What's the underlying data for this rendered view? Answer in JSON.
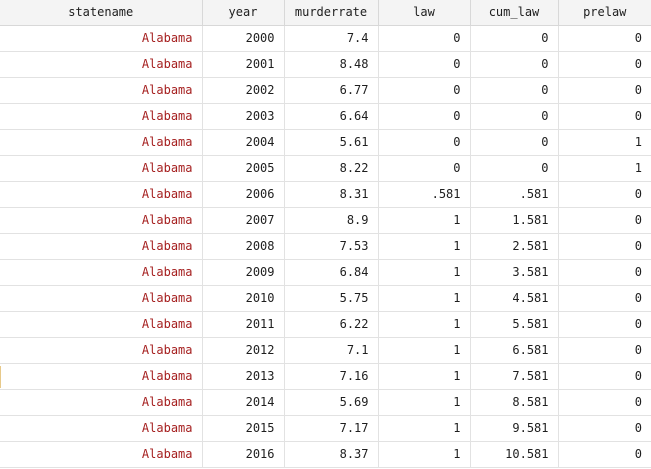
{
  "columns": [
    "statename",
    "year",
    "murderrate",
    "law",
    "cum_law",
    "prelaw"
  ],
  "rows": [
    [
      "Alabama",
      "2000",
      "7.4",
      "0",
      "0",
      "0"
    ],
    [
      "Alabama",
      "2001",
      "8.48",
      "0",
      "0",
      "0"
    ],
    [
      "Alabama",
      "2002",
      "6.77",
      "0",
      "0",
      "0"
    ],
    [
      "Alabama",
      "2003",
      "6.64",
      "0",
      "0",
      "0"
    ],
    [
      "Alabama",
      "2004",
      "5.61",
      "0",
      "0",
      "1"
    ],
    [
      "Alabama",
      "2005",
      "8.22",
      "0",
      "0",
      "1"
    ],
    [
      "Alabama",
      "2006",
      "8.31",
      ".581",
      ".581",
      "0"
    ],
    [
      "Alabama",
      "2007",
      "8.9",
      "1",
      "1.581",
      "0"
    ],
    [
      "Alabama",
      "2008",
      "7.53",
      "1",
      "2.581",
      "0"
    ],
    [
      "Alabama",
      "2009",
      "6.84",
      "1",
      "3.581",
      "0"
    ],
    [
      "Alabama",
      "2010",
      "5.75",
      "1",
      "4.581",
      "0"
    ],
    [
      "Alabama",
      "2011",
      "6.22",
      "1",
      "5.581",
      "0"
    ],
    [
      "Alabama",
      "2012",
      "7.1",
      "1",
      "6.581",
      "0"
    ],
    [
      "Alabama",
      "2013",
      "7.16",
      "1",
      "7.581",
      "0"
    ],
    [
      "Alabama",
      "2014",
      "5.69",
      "1",
      "8.581",
      "0"
    ],
    [
      "Alabama",
      "2015",
      "7.17",
      "1",
      "9.581",
      "0"
    ],
    [
      "Alabama",
      "2016",
      "8.37",
      "1",
      "10.581",
      "0"
    ]
  ],
  "colors": {
    "string_value": "#a51f1f",
    "numeric_value": "#1e1e1e",
    "header_background": "#f4f4f4",
    "grid_line": "#e2e2e2"
  }
}
